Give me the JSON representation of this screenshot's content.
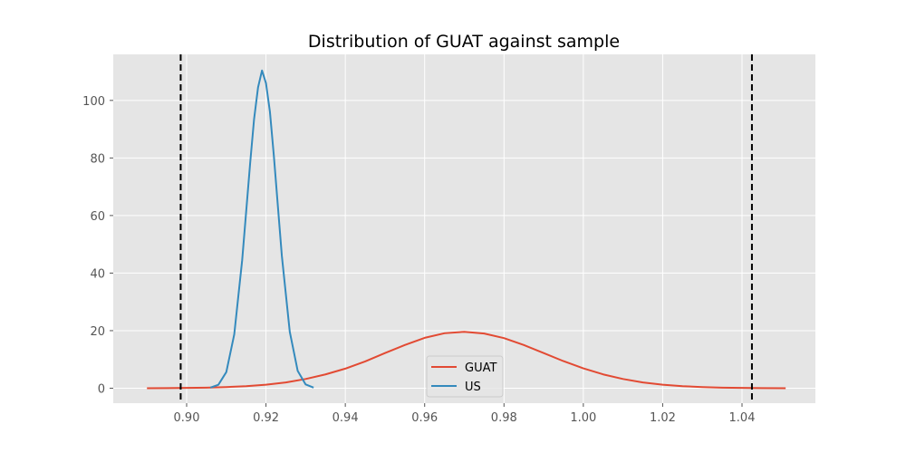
{
  "chart_data": {
    "type": "line",
    "title": "Distribution of GUAT against sample",
    "xlabel": "",
    "ylabel": "",
    "xlim": [
      0.8815,
      1.0585
    ],
    "ylim": [
      -5.2,
      116.0
    ],
    "x_ticks": [
      0.9,
      0.92,
      0.94,
      0.96,
      0.98,
      1.0,
      1.02,
      1.04
    ],
    "x_tick_labels": [
      "0.90",
      "0.92",
      "0.94",
      "0.96",
      "0.98",
      "1.00",
      "1.02",
      "1.04"
    ],
    "y_ticks": [
      0,
      20,
      40,
      60,
      80,
      100
    ],
    "y_tick_labels": [
      "0",
      "20",
      "40",
      "60",
      "80",
      "100"
    ],
    "grid": true,
    "legend_position": "lower-center",
    "series": [
      {
        "name": "GUAT",
        "color": "#E24A33",
        "x": [
          0.89,
          0.895,
          0.9,
          0.905,
          0.91,
          0.915,
          0.92,
          0.925,
          0.93,
          0.935,
          0.94,
          0.945,
          0.95,
          0.955,
          0.96,
          0.965,
          0.97,
          0.975,
          0.98,
          0.985,
          0.99,
          0.995,
          1.0,
          1.005,
          1.01,
          1.015,
          1.02,
          1.025,
          1.03,
          1.035,
          1.04,
          1.045,
          1.051
        ],
        "y": [
          0.01,
          0.05,
          0.1,
          0.2,
          0.4,
          0.7,
          1.2,
          2.0,
          3.2,
          4.8,
          6.8,
          9.3,
          12.2,
          15.0,
          17.5,
          19.1,
          19.6,
          19.0,
          17.4,
          15.0,
          12.2,
          9.4,
          6.9,
          4.8,
          3.2,
          2.0,
          1.2,
          0.7,
          0.4,
          0.2,
          0.1,
          0.05,
          0.01
        ]
      },
      {
        "name": "US",
        "color": "#348ABD",
        "x": [
          0.906,
          0.908,
          0.91,
          0.912,
          0.914,
          0.916,
          0.917,
          0.918,
          0.919,
          0.92,
          0.921,
          0.922,
          0.924,
          0.926,
          0.928,
          0.93,
          0.932
        ],
        "y": [
          0.2,
          1.2,
          5.6,
          18.7,
          44.5,
          78.0,
          93.5,
          104.5,
          110.4,
          106.0,
          96.0,
          80.5,
          46.0,
          19.6,
          6.0,
          1.3,
          0.2
        ]
      }
    ],
    "vlines": [
      {
        "x": 0.8985,
        "color": "#000000",
        "style": "dashed"
      },
      {
        "x": 1.0425,
        "color": "#000000",
        "style": "dashed"
      }
    ]
  }
}
